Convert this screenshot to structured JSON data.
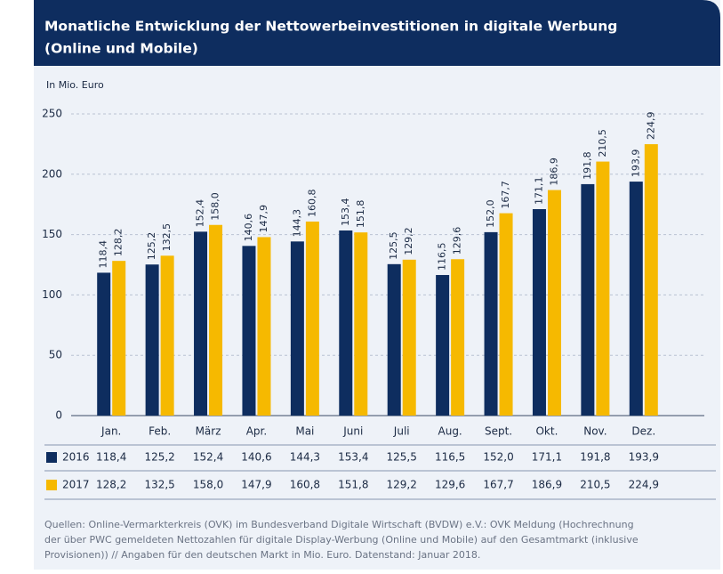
{
  "chart_data": {
    "type": "bar",
    "title": [
      "Monatliche Entwicklung der Nettowerbeinvestitionen in digitale Werbung",
      "(Online und Mobile)"
    ],
    "y_label": "In Mio. Euro",
    "categories": [
      "Jan.",
      "Feb.",
      "März",
      "Apr.",
      "Mai",
      "Juni",
      "Juli",
      "Aug.",
      "Sept.",
      "Okt.",
      "Nov.",
      "Dez."
    ],
    "series": [
      {
        "name": "2016",
        "color": "#0e2d5f",
        "values": [
          118.4,
          125.2,
          152.4,
          140.6,
          144.3,
          153.4,
          125.5,
          116.5,
          152.0,
          171.1,
          191.8,
          193.9
        ],
        "value_labels": [
          "118,4",
          "125,2",
          "152,4",
          "140,6",
          "144,3",
          "153,4",
          "125,5",
          "116,5",
          "152,0",
          "171,1",
          "191,8",
          "193,9"
        ]
      },
      {
        "name": "2017",
        "color": "#f6b900",
        "values": [
          128.2,
          132.5,
          158.0,
          147.9,
          160.8,
          151.8,
          129.2,
          129.6,
          167.7,
          186.9,
          210.5,
          224.9
        ],
        "value_labels": [
          "128,2",
          "132,5",
          "158,0",
          "147,9",
          "160,8",
          "151,8",
          "129,2",
          "129,6",
          "167,7",
          "186,9",
          "210,5",
          "224,9"
        ]
      }
    ],
    "ylim": [
      0,
      250
    ],
    "yticks": [
      0,
      50,
      100,
      150,
      200,
      250
    ],
    "grid": true,
    "source": [
      "Quellen: Online-Vermarkterkreis (OVK) im Bundesverband Digitale Wirtschaft (BVDW) e.V.: OVK Meldung (Hochrechnung",
      "der über PWC gemeldeten Nettozahlen für digitale Display-Werbung (Online und Mobile) auf den Gesamtmarkt (inklusive",
      "Provisionen)) // Angaben für den deutschen Markt in Mio. Euro. Datenstand: Januar 2018."
    ]
  }
}
